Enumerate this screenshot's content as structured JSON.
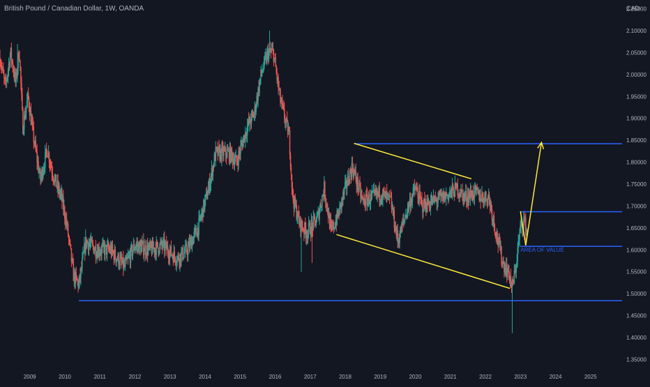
{
  "header": {
    "symbol_title": "British Pound / Canadian Dollar, 1W, OANDA",
    "currency": "CAD"
  },
  "colors": {
    "background": "#131722",
    "up_candle": "#26a69a",
    "down_candle": "#ef5350",
    "horizontal_lines": "#2962ff",
    "trendlines": "#ffeb3b",
    "text": "#b2b5be"
  },
  "chart_data": {
    "type": "candlestick",
    "title": "British Pound / Canadian Dollar, 1W, OANDA",
    "ylabel": "CAD",
    "xlabel": "",
    "ylim": [
      1.33,
      2.17
    ],
    "xlim": [
      2008.15,
      2025.9
    ],
    "grid": false,
    "y_ticks": [
      "1.35000",
      "1.40000",
      "1.45000",
      "1.50000",
      "1.55000",
      "1.60000",
      "1.65000",
      "1.70000",
      "1.75000",
      "1.80000",
      "1.85000",
      "1.90000",
      "1.95000",
      "2.00000",
      "2.05000",
      "2.10000",
      "2.15000"
    ],
    "x_ticks": [
      "2009",
      "2010",
      "2011",
      "2012",
      "2013",
      "2014",
      "2015",
      "2016",
      "2017",
      "2018",
      "2019",
      "2020",
      "2021",
      "2022",
      "2023",
      "2024",
      "2025"
    ],
    "price_path": [
      [
        2008.15,
        2.04
      ],
      [
        2008.3,
        1.97
      ],
      [
        2008.45,
        2.05
      ],
      [
        2008.6,
        1.98
      ],
      [
        2008.7,
        2.06
      ],
      [
        2008.8,
        1.88
      ],
      [
        2008.95,
        1.95
      ],
      [
        2009.1,
        1.86
      ],
      [
        2009.3,
        1.76
      ],
      [
        2009.5,
        1.83
      ],
      [
        2009.7,
        1.76
      ],
      [
        2009.9,
        1.72
      ],
      [
        2010.05,
        1.66
      ],
      [
        2010.25,
        1.54
      ],
      [
        2010.4,
        1.52
      ],
      [
        2010.6,
        1.62
      ],
      [
        2010.9,
        1.6
      ],
      [
        2011.3,
        1.6
      ],
      [
        2011.7,
        1.56
      ],
      [
        2012.0,
        1.61
      ],
      [
        2012.4,
        1.6
      ],
      [
        2012.8,
        1.61
      ],
      [
        2013.2,
        1.58
      ],
      [
        2013.5,
        1.6
      ],
      [
        2013.8,
        1.65
      ],
      [
        2014.1,
        1.74
      ],
      [
        2014.3,
        1.82
      ],
      [
        2014.7,
        1.82
      ],
      [
        2014.9,
        1.8
      ],
      [
        2015.2,
        1.88
      ],
      [
        2015.4,
        1.91
      ],
      [
        2015.6,
        2.0
      ],
      [
        2015.8,
        2.05
      ],
      [
        2015.95,
        2.05
      ],
      [
        2016.15,
        1.94
      ],
      [
        2016.4,
        1.86
      ],
      [
        2016.5,
        1.72
      ],
      [
        2016.7,
        1.66
      ],
      [
        2016.9,
        1.64
      ],
      [
        2017.2,
        1.67
      ],
      [
        2017.4,
        1.74
      ],
      [
        2017.6,
        1.64
      ],
      [
        2017.8,
        1.68
      ],
      [
        2018.0,
        1.74
      ],
      [
        2018.2,
        1.79
      ],
      [
        2018.5,
        1.71
      ],
      [
        2018.8,
        1.72
      ],
      [
        2019.0,
        1.73
      ],
      [
        2019.3,
        1.71
      ],
      [
        2019.5,
        1.62
      ],
      [
        2019.8,
        1.7
      ],
      [
        2020.0,
        1.74
      ],
      [
        2020.2,
        1.7
      ],
      [
        2020.5,
        1.71
      ],
      [
        2020.8,
        1.72
      ],
      [
        2021.0,
        1.73
      ],
      [
        2021.2,
        1.74
      ],
      [
        2021.4,
        1.72
      ],
      [
        2021.7,
        1.73
      ],
      [
        2021.9,
        1.72
      ],
      [
        2022.1,
        1.72
      ],
      [
        2022.3,
        1.64
      ],
      [
        2022.5,
        1.57
      ],
      [
        2022.7,
        1.54
      ],
      [
        2022.75,
        1.51
      ],
      [
        2022.85,
        1.55
      ],
      [
        2022.95,
        1.62
      ],
      [
        2023.0,
        1.65
      ],
      [
        2023.1,
        1.67
      ],
      [
        2023.15,
        1.65
      ],
      [
        2023.2,
        1.64
      ]
    ],
    "wick_extremes": [
      {
        "x": 2008.65,
        "high": 2.07
      },
      {
        "x": 2015.85,
        "high": 2.1
      },
      {
        "x": 2016.75,
        "low": 1.55
      },
      {
        "x": 2017.05,
        "low": 1.57
      },
      {
        "x": 2022.77,
        "low": 1.41
      }
    ],
    "horizontal_levels": [
      1.484,
      1.608,
      1.687,
      1.842
    ],
    "level_spans": [
      {
        "price": 1.484,
        "x_start": 2010.4,
        "x_end": 2025.9
      },
      {
        "price": 1.608,
        "x_start": 2023.0,
        "x_end": 2025.9
      },
      {
        "price": 1.687,
        "x_start": 2023.0,
        "x_end": 2025.9
      },
      {
        "price": 1.842,
        "x_start": 2018.25,
        "x_end": 2025.9
      }
    ],
    "trendlines": [
      {
        "start": [
          2018.25,
          1.843
        ],
        "end": [
          2021.6,
          1.762
        ]
      },
      {
        "start": [
          2017.75,
          1.635
        ],
        "end": [
          2022.7,
          1.512
        ]
      }
    ],
    "projection_arrows": [
      {
        "start": [
          2023.0,
          1.688
        ],
        "end": [
          2023.15,
          1.61
        ]
      },
      {
        "start": [
          2023.15,
          1.61
        ],
        "end": [
          2023.6,
          1.845
        ]
      }
    ],
    "annotations": [
      {
        "text": "AREA OF VALUE",
        "x": 2023.0,
        "y": 1.596
      }
    ]
  }
}
